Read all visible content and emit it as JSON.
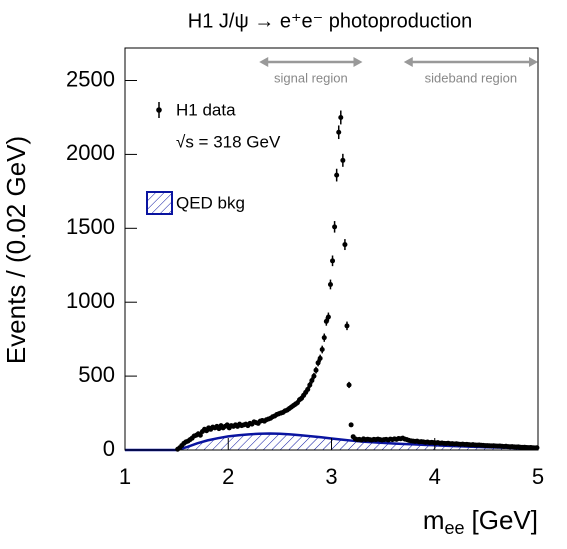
{
  "chart_data": {
    "type": "scatter",
    "title": "H1 J/ψ → e⁺e⁻ photoproduction",
    "x_label": {
      "main": "m",
      "sub": "ee",
      "unit": "[GeV]"
    },
    "y_label": "Events / (0.02 GeV)",
    "xlim": [
      1,
      5
    ],
    "ylim": [
      0,
      2720
    ],
    "xticks": [
      1,
      2,
      3,
      4,
      5
    ],
    "yticks": [
      0,
      500,
      1000,
      1500,
      2000,
      2500
    ],
    "annotation": "√s = 318 GeV",
    "regions": [
      {
        "label": "signal region",
        "range": [
          2.3,
          3.3
        ]
      },
      {
        "label": "sideband region",
        "range": [
          3.7,
          5.0
        ]
      }
    ],
    "series": [
      {
        "name": "H1 data",
        "kind": "points",
        "color": "#000000",
        "x": [
          1.51,
          1.53,
          1.55,
          1.57,
          1.59,
          1.61,
          1.63,
          1.65,
          1.67,
          1.69,
          1.71,
          1.73,
          1.75,
          1.77,
          1.79,
          1.81,
          1.83,
          1.85,
          1.87,
          1.89,
          1.91,
          1.93,
          1.95,
          1.97,
          1.99,
          2.01,
          2.03,
          2.05,
          2.07,
          2.09,
          2.11,
          2.13,
          2.15,
          2.17,
          2.19,
          2.21,
          2.23,
          2.25,
          2.27,
          2.29,
          2.31,
          2.33,
          2.35,
          2.37,
          2.39,
          2.41,
          2.43,
          2.45,
          2.47,
          2.49,
          2.51,
          2.53,
          2.55,
          2.57,
          2.59,
          2.61,
          2.63,
          2.65,
          2.67,
          2.69,
          2.71,
          2.73,
          2.75,
          2.77,
          2.79,
          2.81,
          2.83,
          2.85,
          2.87,
          2.89,
          2.91,
          2.93,
          2.95,
          2.97,
          2.99,
          3.01,
          3.03,
          3.05,
          3.07,
          3.09,
          3.11,
          3.13,
          3.15,
          3.17,
          3.19,
          3.21,
          3.23,
          3.25,
          3.27,
          3.29,
          3.31,
          3.33,
          3.35,
          3.37,
          3.39,
          3.41,
          3.43,
          3.45,
          3.47,
          3.49,
          3.51,
          3.53,
          3.55,
          3.57,
          3.59,
          3.61,
          3.63,
          3.65,
          3.67,
          3.69,
          3.71,
          3.73,
          3.75,
          3.77,
          3.79,
          3.81,
          3.83,
          3.85,
          3.87,
          3.89,
          3.91,
          3.93,
          3.95,
          3.97,
          3.99,
          4.01,
          4.03,
          4.05,
          4.07,
          4.09,
          4.11,
          4.13,
          4.15,
          4.17,
          4.19,
          4.21,
          4.23,
          4.25,
          4.27,
          4.29,
          4.31,
          4.33,
          4.35,
          4.37,
          4.39,
          4.41,
          4.43,
          4.45,
          4.47,
          4.49,
          4.51,
          4.53,
          4.55,
          4.57,
          4.59,
          4.61,
          4.63,
          4.65,
          4.67,
          4.69,
          4.71,
          4.73,
          4.75,
          4.77,
          4.79,
          4.81,
          4.83,
          4.85,
          4.87,
          4.89,
          4.91,
          4.93,
          4.95,
          4.97,
          4.99
        ],
        "values": [
          5,
          15,
          30,
          45,
          55,
          60,
          70,
          80,
          95,
          100,
          110,
          100,
          125,
          140,
          130,
          150,
          140,
          155,
          150,
          160,
          145,
          165,
          150,
          160,
          170,
          150,
          165,
          160,
          170,
          160,
          175,
          165,
          170,
          175,
          165,
          180,
          175,
          190,
          185,
          180,
          195,
          200,
          195,
          205,
          210,
          215,
          225,
          230,
          240,
          245,
          250,
          255,
          265,
          270,
          280,
          290,
          300,
          310,
          320,
          340,
          350,
          370,
          390,
          410,
          440,
          470,
          500,
          540,
          590,
          620,
          680,
          760,
          870,
          900,
          1120,
          1280,
          1510,
          1860,
          2150,
          2250,
          1960,
          1390,
          840,
          440,
          170,
          90,
          75,
          70,
          72,
          68,
          75,
          70,
          73,
          70,
          68,
          72,
          70,
          74,
          70,
          68,
          70,
          72,
          68,
          74,
          70,
          75,
          72,
          78,
          76,
          80,
          74,
          70,
          65,
          62,
          60,
          58,
          60,
          55,
          57,
          55,
          52,
          54,
          50,
          52,
          50,
          48,
          50,
          46,
          47,
          45,
          44,
          46,
          42,
          43,
          41,
          42,
          40,
          38,
          40,
          37,
          38,
          36,
          35,
          36,
          34,
          33,
          34,
          32,
          31,
          30,
          30,
          29,
          28,
          29,
          27,
          26,
          27,
          25,
          24,
          25,
          23,
          22,
          23,
          21,
          20,
          21,
          19,
          18,
          19,
          17,
          16,
          17,
          15,
          14,
          15
        ],
        "errors": [
          2,
          4,
          5,
          7,
          7,
          8,
          8,
          9,
          10,
          10,
          10,
          10,
          11,
          12,
          11,
          12,
          12,
          12,
          12,
          13,
          12,
          13,
          12,
          13,
          13,
          12,
          13,
          13,
          13,
          13,
          13,
          13,
          13,
          13,
          13,
          13,
          13,
          14,
          14,
          13,
          14,
          14,
          14,
          14,
          14,
          15,
          15,
          15,
          15,
          16,
          16,
          16,
          16,
          16,
          17,
          17,
          17,
          18,
          18,
          18,
          19,
          19,
          20,
          20,
          21,
          22,
          22,
          23,
          24,
          25,
          26,
          28,
          29,
          30,
          33,
          36,
          39,
          43,
          46,
          47,
          44,
          37,
          29,
          21,
          13,
          9,
          9,
          8,
          8,
          8,
          9,
          8,
          9,
          8,
          8,
          8,
          8,
          9,
          8,
          8,
          8,
          8,
          8,
          9,
          8,
          9,
          8,
          9,
          9,
          9,
          9,
          8,
          8,
          8,
          8,
          8,
          8,
          7,
          8,
          7,
          7,
          7,
          7,
          7,
          7,
          7,
          7,
          7,
          7,
          7,
          7,
          7,
          6,
          7,
          6,
          6,
          6,
          6,
          6,
          6,
          6,
          6,
          6,
          6,
          6,
          6,
          6,
          6,
          6,
          5,
          5,
          5,
          5,
          5,
          5,
          5,
          5,
          5,
          5,
          5,
          5,
          5,
          5,
          5,
          4,
          5,
          4,
          4,
          4,
          4,
          4,
          4,
          4,
          4,
          4
        ]
      },
      {
        "name": "QED bkg",
        "kind": "area",
        "color": "#0a14a0",
        "x": [
          1.0,
          1.1,
          1.2,
          1.3,
          1.4,
          1.5,
          1.6,
          1.7,
          1.8,
          1.9,
          2.0,
          2.1,
          2.2,
          2.3,
          2.4,
          2.5,
          2.6,
          2.7,
          2.8,
          2.9,
          3.0,
          3.1,
          3.2,
          3.3,
          3.4,
          3.5,
          3.6,
          3.7,
          3.8,
          3.9,
          4.0,
          4.1,
          4.2,
          4.3,
          4.4,
          4.5,
          4.6,
          4.7,
          4.8,
          4.9,
          5.0
        ],
        "values": [
          0,
          0,
          0,
          0,
          0,
          0,
          20,
          45,
          65,
          80,
          92,
          100,
          106,
          110,
          112,
          110,
          106,
          100,
          93,
          86,
          78,
          70,
          63,
          57,
          52,
          48,
          44,
          41,
          38,
          35,
          32,
          29,
          26,
          24,
          21,
          19,
          17,
          15,
          13,
          11,
          10
        ]
      }
    ]
  }
}
